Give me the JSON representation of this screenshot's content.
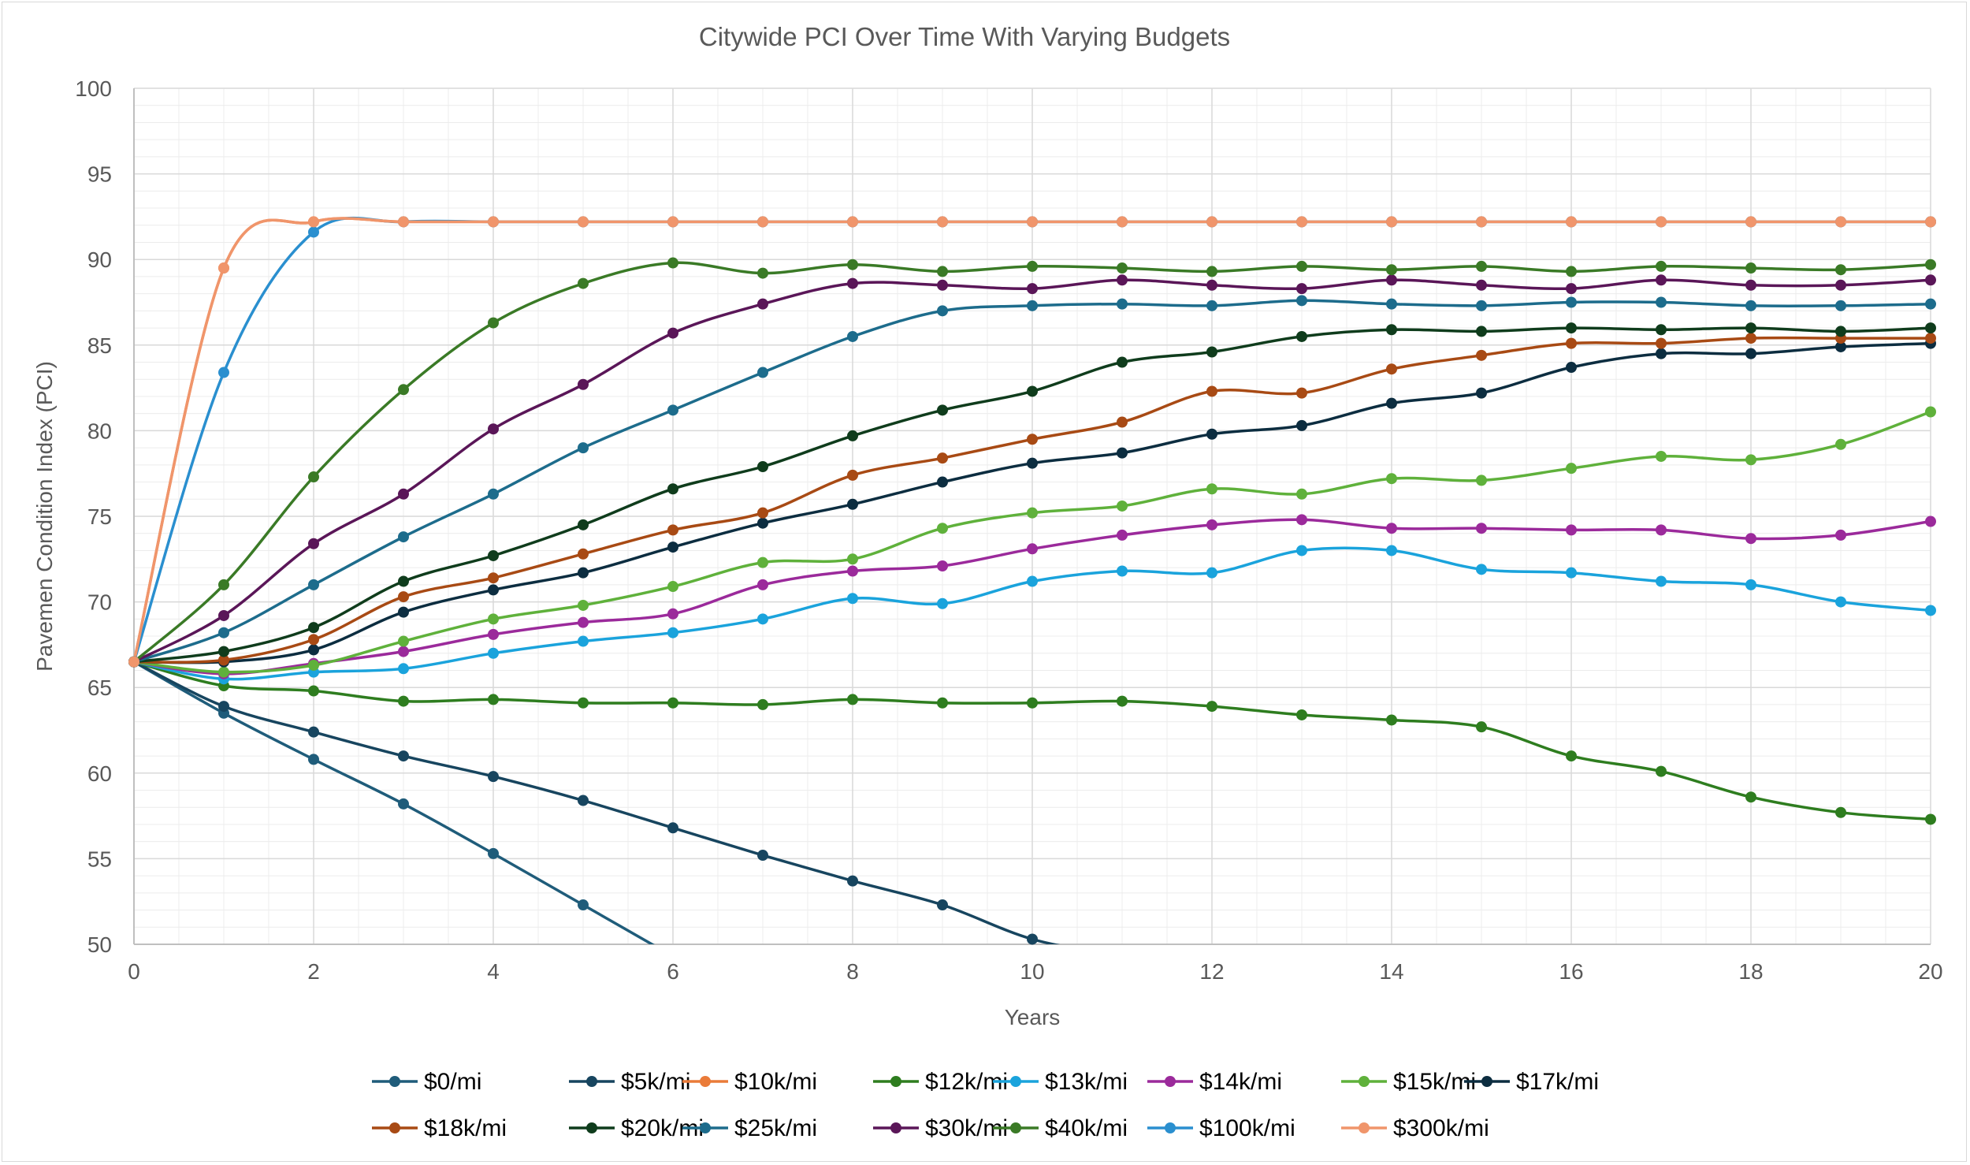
{
  "chart_data": {
    "type": "line",
    "title": "Citywide PCI Over Time With Varying Budgets",
    "xlabel": "Years",
    "ylabel": "Pavemen Condition Index (PCI)",
    "xlim": [
      0,
      20
    ],
    "ylim": [
      50,
      100
    ],
    "x_ticks": [
      0,
      2,
      4,
      6,
      8,
      10,
      12,
      14,
      16,
      18,
      20
    ],
    "y_ticks": [
      50,
      55,
      60,
      65,
      70,
      75,
      80,
      85,
      90,
      95,
      100
    ],
    "grid": true,
    "legend_position": "bottom",
    "x": [
      0,
      1,
      2,
      3,
      4,
      5,
      6,
      7,
      8,
      9,
      10,
      11,
      12,
      13,
      14,
      15,
      16,
      17,
      18,
      19,
      20
    ],
    "series": [
      {
        "name": "$0/mi",
        "color": "#1f5c7a",
        "values": [
          66.5,
          63.5,
          60.8,
          58.2,
          55.3,
          52.3,
          49.3,
          null,
          null,
          null,
          null,
          null,
          null,
          null,
          null,
          null,
          null,
          null,
          null,
          null,
          null
        ]
      },
      {
        "name": "$5k/mi",
        "color": "#17455f",
        "values": [
          66.5,
          63.9,
          62.4,
          61.0,
          59.8,
          58.4,
          56.8,
          55.2,
          53.7,
          52.3,
          50.3,
          49.3,
          null,
          null,
          null,
          null,
          null,
          null,
          null,
          null,
          null
        ]
      },
      {
        "name": "$10k/mi",
        "color": "#ea7b39",
        "values": [
          66.5,
          89.5,
          92.2,
          92.2,
          92.2,
          92.2,
          92.2,
          92.2,
          92.2,
          92.2,
          92.2,
          92.2,
          92.2,
          92.2,
          92.2,
          92.2,
          92.2,
          92.2,
          92.2,
          92.2,
          92.2
        ]
      },
      {
        "name": "$12k/mi",
        "color": "#2e7d1f",
        "values": [
          66.5,
          65.1,
          64.8,
          64.2,
          64.3,
          64.1,
          64.1,
          64.0,
          64.3,
          64.1,
          64.1,
          64.2,
          63.9,
          63.4,
          63.1,
          62.7,
          61.0,
          60.1,
          58.6,
          57.7,
          57.3
        ]
      },
      {
        "name": "$13k/mi",
        "color": "#1aa3dc",
        "values": [
          66.5,
          65.5,
          65.9,
          66.1,
          67.0,
          67.7,
          68.2,
          69.0,
          70.2,
          69.9,
          71.2,
          71.8,
          71.7,
          73.0,
          73.0,
          71.9,
          71.7,
          71.2,
          71.0,
          70.0,
          69.5
        ]
      },
      {
        "name": "$14k/mi",
        "color": "#9b2a9b",
        "values": [
          66.5,
          65.8,
          66.4,
          67.1,
          68.1,
          68.8,
          69.3,
          71.0,
          71.8,
          72.1,
          73.1,
          73.9,
          74.5,
          74.8,
          74.3,
          74.3,
          74.2,
          74.2,
          73.7,
          73.9,
          74.7
        ]
      },
      {
        "name": "$15k/mi",
        "color": "#5fb13b",
        "values": [
          66.5,
          65.9,
          66.3,
          67.7,
          69.0,
          69.8,
          70.9,
          72.3,
          72.5,
          74.3,
          75.2,
          75.6,
          76.6,
          76.3,
          77.2,
          77.1,
          77.8,
          78.5,
          78.3,
          79.2,
          81.1
        ]
      },
      {
        "name": "$17k/mi",
        "color": "#0c2d40",
        "values": [
          66.5,
          66.5,
          67.2,
          69.4,
          70.7,
          71.7,
          73.2,
          74.6,
          75.7,
          77.0,
          78.1,
          78.7,
          79.8,
          80.3,
          81.6,
          82.2,
          83.7,
          84.5,
          84.5,
          84.9,
          85.1
        ]
      },
      {
        "name": "$18k/mi",
        "color": "#a84a14",
        "values": [
          66.5,
          66.6,
          67.8,
          70.3,
          71.4,
          72.8,
          74.2,
          75.2,
          77.4,
          78.4,
          79.5,
          80.5,
          82.3,
          82.2,
          83.6,
          84.4,
          85.1,
          85.1,
          85.4,
          85.4,
          85.4
        ]
      },
      {
        "name": "$20k/mi",
        "color": "#0f3c1c",
        "values": [
          66.5,
          67.1,
          68.5,
          71.2,
          72.7,
          74.5,
          76.6,
          77.9,
          79.7,
          81.2,
          82.3,
          84.0,
          84.6,
          85.5,
          85.9,
          85.8,
          86.0,
          85.9,
          86.0,
          85.8,
          86.0
        ]
      },
      {
        "name": "$25k/mi",
        "color": "#1d6c8c",
        "values": [
          66.5,
          68.2,
          71.0,
          73.8,
          76.3,
          79.0,
          81.2,
          83.4,
          85.5,
          87.0,
          87.3,
          87.4,
          87.3,
          87.6,
          87.4,
          87.3,
          87.5,
          87.5,
          87.3,
          87.3,
          87.4
        ]
      },
      {
        "name": "$30k/mi",
        "color": "#5a1658",
        "values": [
          66.5,
          69.2,
          73.4,
          76.3,
          80.1,
          82.7,
          85.7,
          87.4,
          88.6,
          88.5,
          88.3,
          88.8,
          88.5,
          88.3,
          88.8,
          88.5,
          88.3,
          88.8,
          88.5,
          88.5,
          88.8
        ]
      },
      {
        "name": "$40k/mi",
        "color": "#3a7a26",
        "values": [
          66.5,
          71.0,
          77.3,
          82.4,
          86.3,
          88.6,
          89.8,
          89.2,
          89.7,
          89.3,
          89.6,
          89.5,
          89.3,
          89.6,
          89.4,
          89.6,
          89.3,
          89.6,
          89.5,
          89.4,
          89.7
        ]
      },
      {
        "name": "$100k/mi",
        "color": "#2a8fcf",
        "values": [
          66.5,
          83.4,
          91.6,
          92.2,
          92.2,
          92.2,
          92.2,
          92.2,
          92.2,
          92.2,
          92.2,
          92.2,
          92.2,
          92.2,
          92.2,
          92.2,
          92.2,
          92.2,
          92.2,
          92.2,
          92.2
        ]
      },
      {
        "name": "$300k/mi",
        "color": "#f0956b",
        "values": [
          66.5,
          89.5,
          92.2,
          92.2,
          92.2,
          92.2,
          92.2,
          92.2,
          92.2,
          92.2,
          92.2,
          92.2,
          92.2,
          92.2,
          92.2,
          92.2,
          92.2,
          92.2,
          92.2,
          92.2,
          92.2
        ]
      }
    ]
  }
}
